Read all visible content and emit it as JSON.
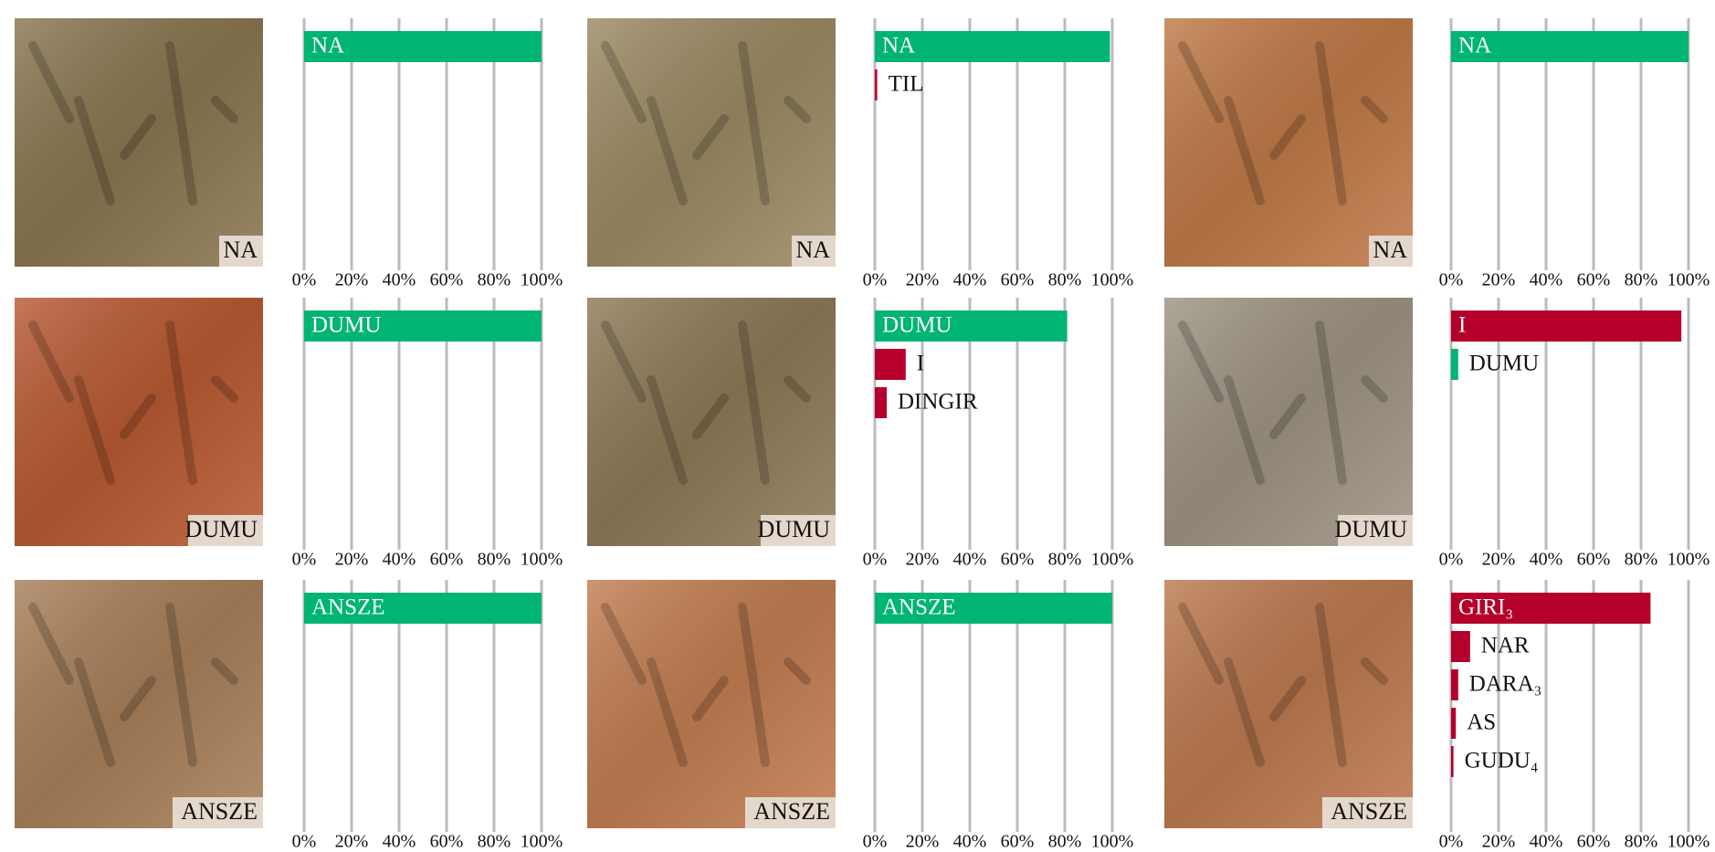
{
  "chart_data": [
    {
      "type": "barh",
      "image_label": "NA",
      "image_color": "#8a7650",
      "categories": [
        "NA"
      ],
      "values": [
        100
      ],
      "colors": [
        "#00b473"
      ],
      "xlim": [
        0,
        100
      ],
      "xticks": [
        {
          "value": 0,
          "label": "0%"
        },
        {
          "value": 20,
          "label": "20%"
        },
        {
          "value": 40,
          "label": "40%"
        },
        {
          "value": 60,
          "label": "60%"
        },
        {
          "value": 80,
          "label": "80%"
        },
        {
          "value": 100,
          "label": "100%"
        }
      ]
    },
    {
      "type": "barh",
      "image_label": "NA",
      "image_color": "#9c8a64",
      "categories": [
        "NA",
        "TIL"
      ],
      "values": [
        99,
        1
      ],
      "colors": [
        "#00b473",
        "#b5002b"
      ],
      "xlim": [
        0,
        100
      ],
      "xticks": [
        {
          "value": 0,
          "label": "0%"
        },
        {
          "value": 20,
          "label": "20%"
        },
        {
          "value": 40,
          "label": "40%"
        },
        {
          "value": 60,
          "label": "60%"
        },
        {
          "value": 80,
          "label": "80%"
        },
        {
          "value": 100,
          "label": "100%"
        }
      ]
    },
    {
      "type": "barh",
      "image_label": "NA",
      "image_color": "#c07a48",
      "categories": [
        "NA"
      ],
      "values": [
        100
      ],
      "colors": [
        "#00b473"
      ],
      "xlim": [
        0,
        100
      ],
      "xticks": [
        {
          "value": 0,
          "label": "0%"
        },
        {
          "value": 20,
          "label": "20%"
        },
        {
          "value": 40,
          "label": "40%"
        },
        {
          "value": 60,
          "label": "60%"
        },
        {
          "value": 80,
          "label": "80%"
        },
        {
          "value": 100,
          "label": "100%"
        }
      ]
    },
    {
      "type": "barh",
      "image_label": "DUMU",
      "image_color": "#b85a32",
      "categories": [
        "DUMU"
      ],
      "values": [
        100
      ],
      "colors": [
        "#00b473"
      ],
      "xlim": [
        0,
        100
      ],
      "xticks": [
        {
          "value": 0,
          "label": "0%"
        },
        {
          "value": 20,
          "label": "20%"
        },
        {
          "value": 40,
          "label": "40%"
        },
        {
          "value": 60,
          "label": "60%"
        },
        {
          "value": 80,
          "label": "80%"
        },
        {
          "value": 100,
          "label": "100%"
        }
      ]
    },
    {
      "type": "barh",
      "image_label": "DUMU",
      "image_color": "#8f7a58",
      "categories": [
        "DUMU",
        "I",
        "DINGIR"
      ],
      "values": [
        81,
        13,
        5
      ],
      "colors": [
        "#00b473",
        "#b5002b",
        "#b5002b"
      ],
      "xlim": [
        0,
        100
      ],
      "xticks": [
        {
          "value": 0,
          "label": "0%"
        },
        {
          "value": 20,
          "label": "20%"
        },
        {
          "value": 40,
          "label": "40%"
        },
        {
          "value": 60,
          "label": "60%"
        },
        {
          "value": 80,
          "label": "80%"
        },
        {
          "value": 100,
          "label": "100%"
        }
      ]
    },
    {
      "type": "barh",
      "image_label": "DUMU",
      "image_color": "#9e9483",
      "categories": [
        "I",
        "DUMU"
      ],
      "values": [
        97,
        3
      ],
      "colors": [
        "#b5002b",
        "#00b473"
      ],
      "xlim": [
        0,
        100
      ],
      "xticks": [
        {
          "value": 0,
          "label": "0%"
        },
        {
          "value": 20,
          "label": "20%"
        },
        {
          "value": 40,
          "label": "40%"
        },
        {
          "value": 60,
          "label": "60%"
        },
        {
          "value": 80,
          "label": "80%"
        },
        {
          "value": 100,
          "label": "100%"
        }
      ]
    },
    {
      "type": "barh",
      "image_label": "ANSZE",
      "image_color": "#a8805a",
      "categories": [
        "ANSZE"
      ],
      "values": [
        100
      ],
      "colors": [
        "#00b473"
      ],
      "xlim": [
        0,
        100
      ],
      "xticks": [
        {
          "value": 0,
          "label": "0%"
        },
        {
          "value": 20,
          "label": "20%"
        },
        {
          "value": 40,
          "label": "40%"
        },
        {
          "value": 60,
          "label": "60%"
        },
        {
          "value": 80,
          "label": "80%"
        },
        {
          "value": 100,
          "label": "100%"
        }
      ]
    },
    {
      "type": "barh",
      "image_label": "ANSZE",
      "image_color": "#c27e52",
      "categories": [
        "ANSZE"
      ],
      "values": [
        100
      ],
      "colors": [
        "#00b473"
      ],
      "xlim": [
        0,
        100
      ],
      "xticks": [
        {
          "value": 0,
          "label": "0%"
        },
        {
          "value": 20,
          "label": "20%"
        },
        {
          "value": 40,
          "label": "40%"
        },
        {
          "value": 60,
          "label": "60%"
        },
        {
          "value": 80,
          "label": "80%"
        },
        {
          "value": 100,
          "label": "100%"
        }
      ]
    },
    {
      "type": "barh",
      "image_label": "ANSZE",
      "image_color": "#bd7a50",
      "categories": [
        "GIRI₃",
        "NAR",
        "DARA₃",
        "AS",
        "GUDU₄"
      ],
      "values": [
        84,
        8,
        3,
        2,
        1
      ],
      "colors": [
        "#b5002b",
        "#b5002b",
        "#b5002b",
        "#b5002b",
        "#b5002b"
      ],
      "xlim": [
        0,
        100
      ],
      "xticks": [
        {
          "value": 0,
          "label": "0%"
        },
        {
          "value": 20,
          "label": "20%"
        },
        {
          "value": 40,
          "label": "40%"
        },
        {
          "value": 60,
          "label": "60%"
        },
        {
          "value": 80,
          "label": "80%"
        },
        {
          "value": 100,
          "label": "100%"
        }
      ]
    }
  ]
}
